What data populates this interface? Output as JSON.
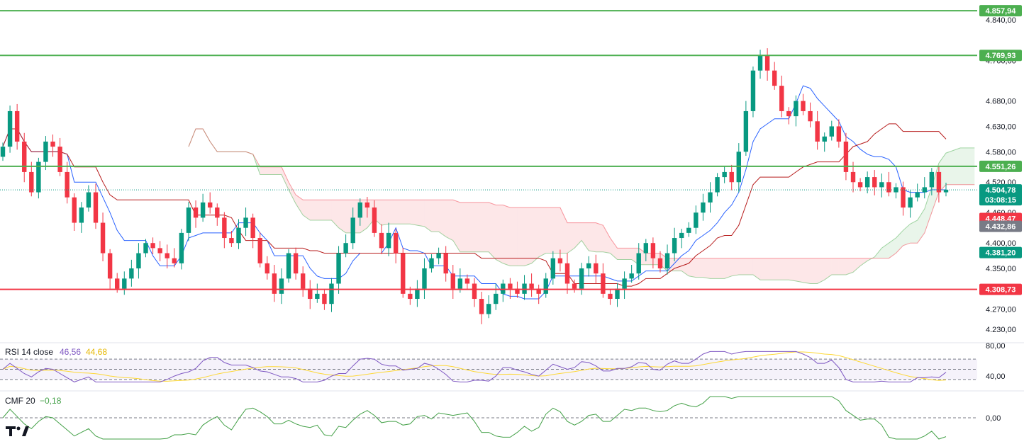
{
  "chart_data": {
    "type": "candlestick",
    "price_axis": {
      "ticks": [
        "4.840,00",
        "4.760,00",
        "4.680,00",
        "4.630,00",
        "4.580,00",
        "4.520,00",
        "4.460,00",
        "4.400,00",
        "4.350,00",
        "4.270,00",
        "4.230,00"
      ],
      "tick_values": [
        4840,
        4760,
        4680,
        4630,
        4580,
        4520,
        4460,
        4400,
        4350,
        4270,
        4230
      ]
    },
    "levels": [
      {
        "label": "4.857,94",
        "value": 4857.94,
        "color": "#4caf50"
      },
      {
        "label": "4.769,93",
        "value": 4769.93,
        "color": "#4caf50"
      },
      {
        "label": "4.551,26",
        "value": 4551.26,
        "color": "#4caf50"
      },
      {
        "label": "4.308,73",
        "value": 4308.73,
        "color": "#f23645"
      }
    ],
    "price_tags": [
      {
        "label": "4.504,78",
        "value": 4504.78,
        "color": "#089981",
        "sub": "03:08:15"
      },
      {
        "label": "4.448,47",
        "value": 4448.47,
        "color": "#f23645"
      },
      {
        "label": "4.432,86",
        "value": 4432.86,
        "color": "#787b86"
      },
      {
        "label": "4.381,20",
        "value": 4381.2,
        "color": "#089981"
      }
    ],
    "candles_close": [
      4590,
      4660,
      4600,
      4540,
      4500,
      4560,
      4600,
      4590,
      4540,
      4490,
      4440,
      4470,
      4500,
      4440,
      4380,
      4330,
      4310,
      4330,
      4350,
      4380,
      4400,
      4390,
      4380,
      4370,
      4360,
      4420,
      4470,
      4450,
      4480,
      4470,
      4450,
      4410,
      4400,
      4430,
      4450,
      4410,
      4360,
      4340,
      4300,
      4330,
      4380,
      4340,
      4310,
      4290,
      4300,
      4280,
      4320,
      4380,
      4400,
      4450,
      4480,
      4470,
      4420,
      4390,
      4420,
      4380,
      4300,
      4290,
      4310,
      4350,
      4370,
      4380,
      4340,
      4310,
      4330,
      4320,
      4290,
      4260,
      4280,
      4300,
      4320,
      4310,
      4300,
      4320,
      4310,
      4300,
      4330,
      4370,
      4360,
      4320,
      4310,
      4350,
      4360,
      4340,
      4300,
      4290,
      4310,
      4330,
      4340,
      4380,
      4400,
      4370,
      4350,
      4380,
      4410,
      4420,
      4430,
      4460,
      4480,
      4500,
      4530,
      4540,
      4520,
      4580,
      4660,
      4740,
      4770,
      4740,
      4710,
      4660,
      4650,
      4680,
      4660,
      4640,
      4600,
      4610,
      4630,
      4600,
      4540,
      4520,
      4510,
      4530,
      4510,
      4520,
      4500,
      4510,
      4470,
      4490,
      4500,
      4510,
      4540,
      4500,
      4505
    ],
    "rsi": {
      "title": "RSI 14 close",
      "value": "46,56",
      "ma_value": "44,68",
      "ticks": [
        "80,00",
        "40,00"
      ]
    },
    "cmf": {
      "title": "CMF 20",
      "value": "−0,18",
      "ticks": [
        "0,00"
      ]
    },
    "colors": {
      "up": "#089981",
      "down": "#f23645",
      "cloud_up": "#4caf50",
      "cloud_down": "#f23645",
      "tenkan": "#2962ff",
      "kijun": "#b71c1c",
      "rsi": "#7e57c2",
      "rsi_ma": "#fdd835",
      "cmf": "#43a047"
    }
  }
}
